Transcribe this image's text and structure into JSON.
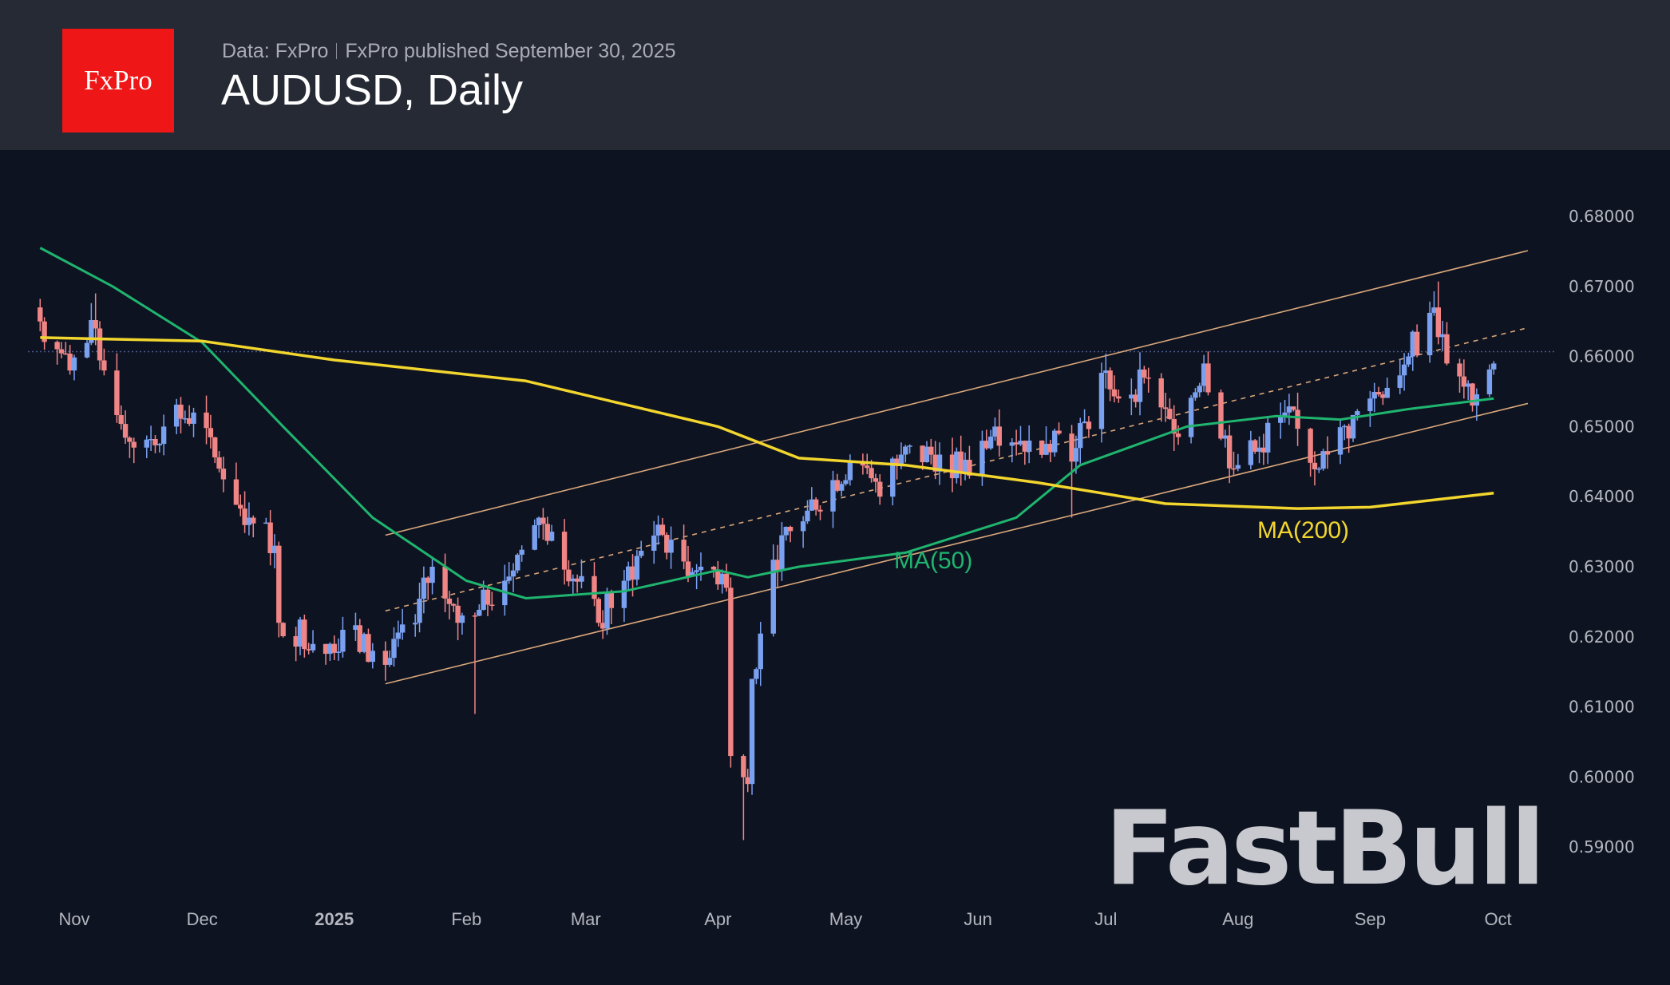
{
  "header": {
    "logo_text": "FxPro",
    "source": "Data: FxPro",
    "published": "FxPro published September 30, 2025",
    "title": "AUDUSD, Daily"
  },
  "watermark": "FastBull",
  "chart_data": {
    "type": "candlestick",
    "title": "AUDUSD, Daily",
    "ylim": [
      0.583,
      0.6865
    ],
    "y_ticks": [
      "0.59000",
      "0.60000",
      "0.61000",
      "0.62000",
      "0.63000",
      "0.64000",
      "0.65000",
      "0.66000",
      "0.67000",
      "0.68000"
    ],
    "x_ticks": [
      {
        "label": "Nov",
        "date": "2024-11-01"
      },
      {
        "label": "Dec",
        "date": "2024-12-01"
      },
      {
        "label": "2025",
        "date": "2025-01-01",
        "bold": true
      },
      {
        "label": "Feb",
        "date": "2025-02-01"
      },
      {
        "label": "Mar",
        "date": "2025-03-01"
      },
      {
        "label": "Apr",
        "date": "2025-04-01"
      },
      {
        "label": "May",
        "date": "2025-05-01"
      },
      {
        "label": "Jun",
        "date": "2025-06-01"
      },
      {
        "label": "Jul",
        "date": "2025-07-01"
      },
      {
        "label": "Aug",
        "date": "2025-08-01"
      },
      {
        "label": "Sep",
        "date": "2025-09-01"
      },
      {
        "label": "Oct",
        "date": "2025-10-01"
      }
    ],
    "colors": {
      "up": "#7aa0f0",
      "down": "#f08585",
      "ma50": "#1fb56f",
      "ma200": "#f2d62e",
      "channel": "#d9a77a",
      "price_line": "#4a5a8a"
    },
    "close_path": [
      [
        "2024-10-24",
        0.665
      ],
      [
        "2024-10-31",
        0.658
      ],
      [
        "2024-11-06",
        0.664
      ],
      [
        "2024-11-08",
        0.658
      ],
      [
        "2024-11-15",
        0.647
      ],
      [
        "2024-11-22",
        0.65
      ],
      [
        "2024-11-29",
        0.652
      ],
      [
        "2024-12-05",
        0.644
      ],
      [
        "2024-12-12",
        0.637
      ],
      [
        "2024-12-18",
        0.633
      ],
      [
        "2024-12-19",
        0.622
      ],
      [
        "2024-12-31",
        0.619
      ],
      [
        "2025-01-03",
        0.621
      ],
      [
        "2025-01-13",
        0.616
      ],
      [
        "2025-01-20",
        0.622
      ],
      [
        "2025-01-24",
        0.63
      ],
      [
        "2025-01-30",
        0.622
      ],
      [
        "2025-02-03",
        0.623
      ],
      [
        "2025-02-10",
        0.628
      ],
      [
        "2025-02-18",
        0.637
      ],
      [
        "2025-02-21",
        0.635
      ],
      [
        "2025-03-04",
        0.622
      ],
      [
        "2025-03-10",
        0.628
      ],
      [
        "2025-03-18",
        0.636
      ],
      [
        "2025-03-20",
        0.632
      ],
      [
        "2025-03-28",
        0.63
      ],
      [
        "2025-04-02",
        0.629
      ],
      [
        "2025-04-03",
        0.627
      ],
      [
        "2025-04-04",
        0.603
      ],
      [
        "2025-04-08",
        0.599
      ],
      [
        "2025-04-09",
        0.614
      ],
      [
        "2025-04-14",
        0.631
      ],
      [
        "2025-04-22",
        0.638
      ],
      [
        "2025-05-02",
        0.645
      ],
      [
        "2025-05-09",
        0.64
      ],
      [
        "2025-05-14",
        0.646
      ],
      [
        "2025-05-23",
        0.646
      ],
      [
        "2025-05-30",
        0.643
      ],
      [
        "2025-06-05",
        0.65
      ],
      [
        "2025-06-13",
        0.648
      ],
      [
        "2025-06-20",
        0.649
      ],
      [
        "2025-06-23",
        0.645
      ],
      [
        "2025-07-01",
        0.658
      ],
      [
        "2025-07-04",
        0.654
      ],
      [
        "2025-07-10",
        0.657
      ],
      [
        "2025-07-17",
        0.649
      ],
      [
        "2025-07-24",
        0.659
      ],
      [
        "2025-07-31",
        0.644
      ],
      [
        "2025-08-06",
        0.647
      ],
      [
        "2025-08-12",
        0.652
      ],
      [
        "2025-08-20",
        0.644
      ],
      [
        "2025-08-22",
        0.646
      ],
      [
        "2025-09-01",
        0.654
      ],
      [
        "2025-09-10",
        0.66
      ],
      [
        "2025-09-16",
        0.667
      ],
      [
        "2025-09-19",
        0.659
      ],
      [
        "2025-09-25",
        0.653
      ],
      [
        "2025-09-30",
        0.659
      ]
    ],
    "wick_extremes": [
      [
        "2024-11-06",
        "high",
        0.669
      ],
      [
        "2025-02-03",
        "low",
        0.609
      ],
      [
        "2025-04-07",
        "low",
        0.591
      ],
      [
        "2025-06-23",
        "low",
        0.637
      ],
      [
        "2025-09-17",
        "high",
        0.6707
      ]
    ],
    "series": [
      {
        "name": "MA(50)",
        "label": "MA(50)",
        "points": [
          [
            "2024-10-24",
            0.6755
          ],
          [
            "2024-11-10",
            0.67
          ],
          [
            "2024-12-01",
            0.662
          ],
          [
            "2024-12-20",
            0.65
          ],
          [
            "2025-01-10",
            0.637
          ],
          [
            "2025-02-01",
            0.628
          ],
          [
            "2025-02-15",
            0.6255
          ],
          [
            "2025-03-10",
            0.6265
          ],
          [
            "2025-04-01",
            0.6295
          ],
          [
            "2025-04-08",
            0.6285
          ],
          [
            "2025-04-20",
            0.63
          ],
          [
            "2025-05-15",
            0.632
          ],
          [
            "2025-06-10",
            0.637
          ],
          [
            "2025-06-25",
            0.6445
          ],
          [
            "2025-07-20",
            0.65
          ],
          [
            "2025-08-10",
            0.6515
          ],
          [
            "2025-08-25",
            0.651
          ],
          [
            "2025-09-10",
            0.6525
          ],
          [
            "2025-09-30",
            0.654
          ]
        ]
      },
      {
        "name": "MA(200)",
        "label": "MA(200)",
        "points": [
          [
            "2024-10-24",
            0.6627
          ],
          [
            "2024-12-01",
            0.6622
          ],
          [
            "2025-01-01",
            0.6595
          ],
          [
            "2025-02-15",
            0.6565
          ],
          [
            "2025-04-01",
            0.65
          ],
          [
            "2025-04-20",
            0.6455
          ],
          [
            "2025-05-15",
            0.6445
          ],
          [
            "2025-06-15",
            0.642
          ],
          [
            "2025-07-15",
            0.639
          ],
          [
            "2025-08-15",
            0.6383
          ],
          [
            "2025-09-01",
            0.6385
          ],
          [
            "2025-09-30",
            0.6405
          ]
        ]
      }
    ],
    "channel": {
      "upper": [
        [
          "2025-01-13",
          0.6345
        ],
        [
          "2025-10-08",
          0.6751
        ]
      ],
      "middle": [
        [
          "2025-01-13",
          0.6237
        ],
        [
          "2025-10-08",
          0.6641
        ]
      ],
      "lower": [
        [
          "2025-01-13",
          0.6133
        ],
        [
          "2025-10-08",
          0.6533
        ]
      ]
    },
    "current_price": 0.6607
  }
}
